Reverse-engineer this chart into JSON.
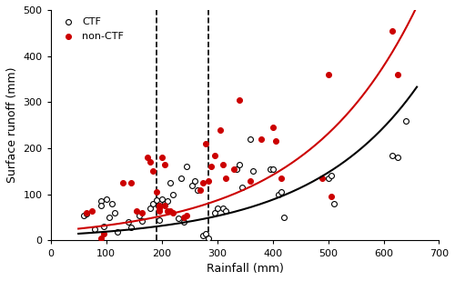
{
  "title": "",
  "xlabel": "Rainfall (mm)",
  "ylabel": "Surface runoff (mm)",
  "xlim": [
    0,
    700
  ],
  "ylim": [
    0,
    500
  ],
  "xticks": [
    0,
    100,
    200,
    300,
    400,
    500,
    600,
    700
  ],
  "yticks": [
    0,
    100,
    200,
    300,
    400,
    500
  ],
  "vline1": 190,
  "vline2": 285,
  "ctf_scatter": [
    [
      60,
      55
    ],
    [
      65,
      58
    ],
    [
      80,
      25
    ],
    [
      90,
      85
    ],
    [
      90,
      75
    ],
    [
      95,
      30
    ],
    [
      100,
      90
    ],
    [
      105,
      50
    ],
    [
      110,
      80
    ],
    [
      115,
      60
    ],
    [
      120,
      18
    ],
    [
      140,
      40
    ],
    [
      145,
      28
    ],
    [
      160,
      55
    ],
    [
      165,
      42
    ],
    [
      180,
      70
    ],
    [
      185,
      80
    ],
    [
      190,
      88
    ],
    [
      195,
      75
    ],
    [
      195,
      45
    ],
    [
      200,
      90
    ],
    [
      205,
      80
    ],
    [
      210,
      85
    ],
    [
      215,
      125
    ],
    [
      220,
      100
    ],
    [
      230,
      48
    ],
    [
      235,
      135
    ],
    [
      240,
      40
    ],
    [
      245,
      160
    ],
    [
      255,
      120
    ],
    [
      260,
      130
    ],
    [
      265,
      110
    ],
    [
      275,
      10
    ],
    [
      280,
      15
    ],
    [
      285,
      5
    ],
    [
      295,
      60
    ],
    [
      300,
      70
    ],
    [
      310,
      70
    ],
    [
      315,
      65
    ],
    [
      335,
      155
    ],
    [
      340,
      165
    ],
    [
      345,
      115
    ],
    [
      360,
      220
    ],
    [
      365,
      150
    ],
    [
      395,
      155
    ],
    [
      400,
      155
    ],
    [
      410,
      100
    ],
    [
      415,
      105
    ],
    [
      420,
      50
    ],
    [
      500,
      135
    ],
    [
      505,
      140
    ],
    [
      510,
      80
    ],
    [
      615,
      185
    ],
    [
      625,
      180
    ],
    [
      640,
      260
    ]
  ],
  "non_ctf_scatter": [
    [
      65,
      60
    ],
    [
      75,
      65
    ],
    [
      90,
      5
    ],
    [
      95,
      15
    ],
    [
      130,
      125
    ],
    [
      145,
      125
    ],
    [
      155,
      65
    ],
    [
      165,
      60
    ],
    [
      175,
      180
    ],
    [
      180,
      170
    ],
    [
      185,
      150
    ],
    [
      190,
      105
    ],
    [
      195,
      75
    ],
    [
      195,
      65
    ],
    [
      195,
      70
    ],
    [
      200,
      180
    ],
    [
      205,
      165
    ],
    [
      205,
      75
    ],
    [
      210,
      65
    ],
    [
      215,
      65
    ],
    [
      220,
      60
    ],
    [
      240,
      50
    ],
    [
      245,
      55
    ],
    [
      270,
      110
    ],
    [
      275,
      125
    ],
    [
      280,
      210
    ],
    [
      285,
      130
    ],
    [
      290,
      160
    ],
    [
      295,
      185
    ],
    [
      305,
      240
    ],
    [
      310,
      165
    ],
    [
      315,
      135
    ],
    [
      330,
      155
    ],
    [
      340,
      305
    ],
    [
      360,
      130
    ],
    [
      380,
      220
    ],
    [
      400,
      245
    ],
    [
      405,
      215
    ],
    [
      415,
      135
    ],
    [
      490,
      135
    ],
    [
      500,
      360
    ],
    [
      505,
      95
    ],
    [
      615,
      455
    ],
    [
      625,
      360
    ]
  ],
  "ctf_a": 0.00045,
  "ctf_b": 2.1,
  "non_ctf_a": 0.0012,
  "non_ctf_b": 2.1,
  "ctf_color": "#000000",
  "non_ctf_color": "#cc0000",
  "figsize": [
    5.0,
    3.09
  ],
  "dpi": 100
}
